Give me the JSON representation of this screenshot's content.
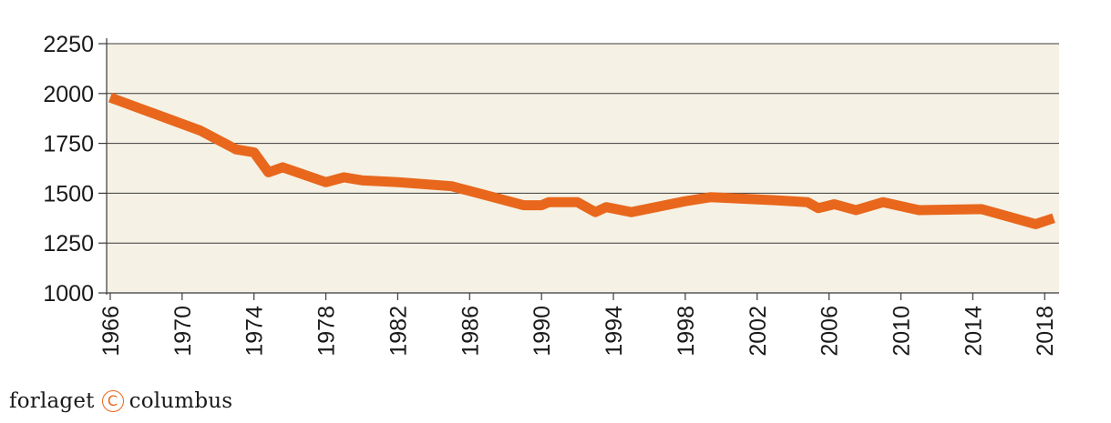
{
  "colors": {
    "plot_background": "#f5f1e4",
    "line": "#e8671c",
    "grid": "#3a3a3a",
    "text": "#1a1a1a"
  },
  "chart_data": {
    "type": "line",
    "title": "",
    "xlabel": "",
    "ylabel": "",
    "xlim": [
      1965.8,
      2018.8
    ],
    "ylim": [
      1000,
      2250
    ],
    "y_ticks": [
      "1000",
      "1250",
      "1500",
      "1750",
      "2000",
      "2250"
    ],
    "x_ticks": [
      "1966",
      "1970",
      "1974",
      "1978",
      "1982",
      "1986",
      "1990",
      "1994",
      "1998",
      "2002",
      "2006",
      "2010",
      "2014",
      "2018"
    ],
    "grid": "horizontal",
    "legend": "none",
    "series": [
      {
        "x": [
          1966,
          1971,
          1973,
          1974,
          1974.8,
          1975.6,
          1978,
          1979,
          1980,
          1982,
          1985,
          1989,
          1990,
          1990.4,
          1992,
          1993,
          1993.6,
          1995,
          1998,
          1999.4,
          2003,
          2004.8,
          2005.4,
          2006.3,
          2007.5,
          2009,
          2011,
          2014.5,
          2017.5,
          2018.5
        ],
        "y": [
          1980,
          1815,
          1720,
          1705,
          1605,
          1630,
          1555,
          1580,
          1565,
          1555,
          1535,
          1440,
          1440,
          1455,
          1455,
          1405,
          1430,
          1405,
          1460,
          1480,
          1465,
          1455,
          1425,
          1445,
          1415,
          1455,
          1415,
          1420,
          1345,
          1375
        ]
      }
    ]
  },
  "footer": {
    "brand_left": "forlaget",
    "copyright_symbol": "C",
    "brand_right": "columbus"
  }
}
